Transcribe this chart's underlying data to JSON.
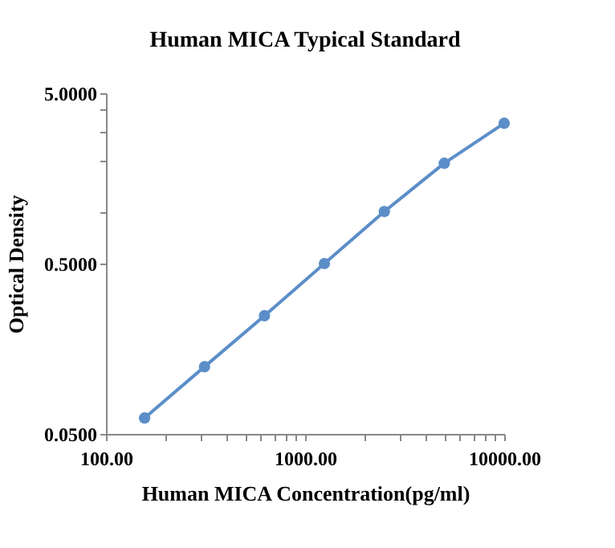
{
  "chart_data": {
    "type": "line",
    "title": "Human  MICA  Typical Standard",
    "xlabel": "Human  MICA  Concentration(pg/ml)",
    "ylabel": "Optical Density",
    "x": [
      156.25,
      312.5,
      625,
      1250,
      2500,
      5000,
      10000
    ],
    "series": [
      {
        "color": "#5b8ec8",
        "values": [
          0.062,
          0.124,
          0.247,
          0.5,
          1.01,
          1.94,
          3.33
        ]
      }
    ],
    "log": "xy",
    "marker": "circle",
    "line_style": "solid",
    "grid": false,
    "xlim": [
      100,
      10000
    ],
    "ylim": [
      0.05,
      5
    ],
    "xticks": [
      {
        "value": 100,
        "label": "100.00"
      },
      {
        "value": 200,
        "label": null
      },
      {
        "value": 300,
        "label": null
      },
      {
        "value": 400,
        "label": null
      },
      {
        "value": 500,
        "label": null
      },
      {
        "value": 600,
        "label": null
      },
      {
        "value": 700,
        "label": null
      },
      {
        "value": 800,
        "label": null
      },
      {
        "value": 900,
        "label": null
      },
      {
        "value": 1000,
        "label": "1000.00"
      },
      {
        "value": 2000,
        "label": null
      },
      {
        "value": 3000,
        "label": null
      },
      {
        "value": 4000,
        "label": null
      },
      {
        "value": 5000,
        "label": null
      },
      {
        "value": 6000,
        "label": null
      },
      {
        "value": 7000,
        "label": null
      },
      {
        "value": 8000,
        "label": null
      },
      {
        "value": 9000,
        "label": null
      },
      {
        "value": 10000,
        "label": "10000.00"
      }
    ],
    "yticks": [
      {
        "value": 0.05,
        "label": "0.0500"
      },
      {
        "value": 0.5,
        "label": "0.5000"
      },
      {
        "value": 1,
        "label": null
      },
      {
        "value": 2,
        "label": null
      },
      {
        "value": 3,
        "label": null
      },
      {
        "value": 4,
        "label": null
      },
      {
        "value": 5,
        "label": "5.0000"
      }
    ]
  }
}
